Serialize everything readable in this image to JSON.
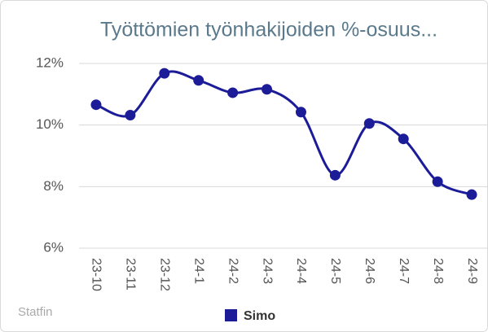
{
  "chart_data": {
    "type": "line",
    "title": "Työttömien työnhakijoiden %-osuus...",
    "credit": "Statfin",
    "categories": [
      "23-10",
      "23-11",
      "23-12",
      "24-1",
      "24-2",
      "24-3",
      "24-4",
      "24-5",
      "24-6",
      "24-7",
      "24-8",
      "24-9"
    ],
    "series": [
      {
        "name": "Simo",
        "color": "#1c1c99",
        "values": [
          10.66,
          10.32,
          11.68,
          11.45,
          11.05,
          11.16,
          10.42,
          8.37,
          10.05,
          9.55,
          8.16,
          7.74
        ]
      }
    ],
    "ylim": [
      6,
      12
    ],
    "yticks": [
      {
        "value": 6,
        "label": "6%"
      },
      {
        "value": 8,
        "label": "8%"
      },
      {
        "value": 10,
        "label": "10%"
      },
      {
        "value": 12,
        "label": "12%"
      }
    ],
    "grid": true,
    "legend": "bottom"
  }
}
